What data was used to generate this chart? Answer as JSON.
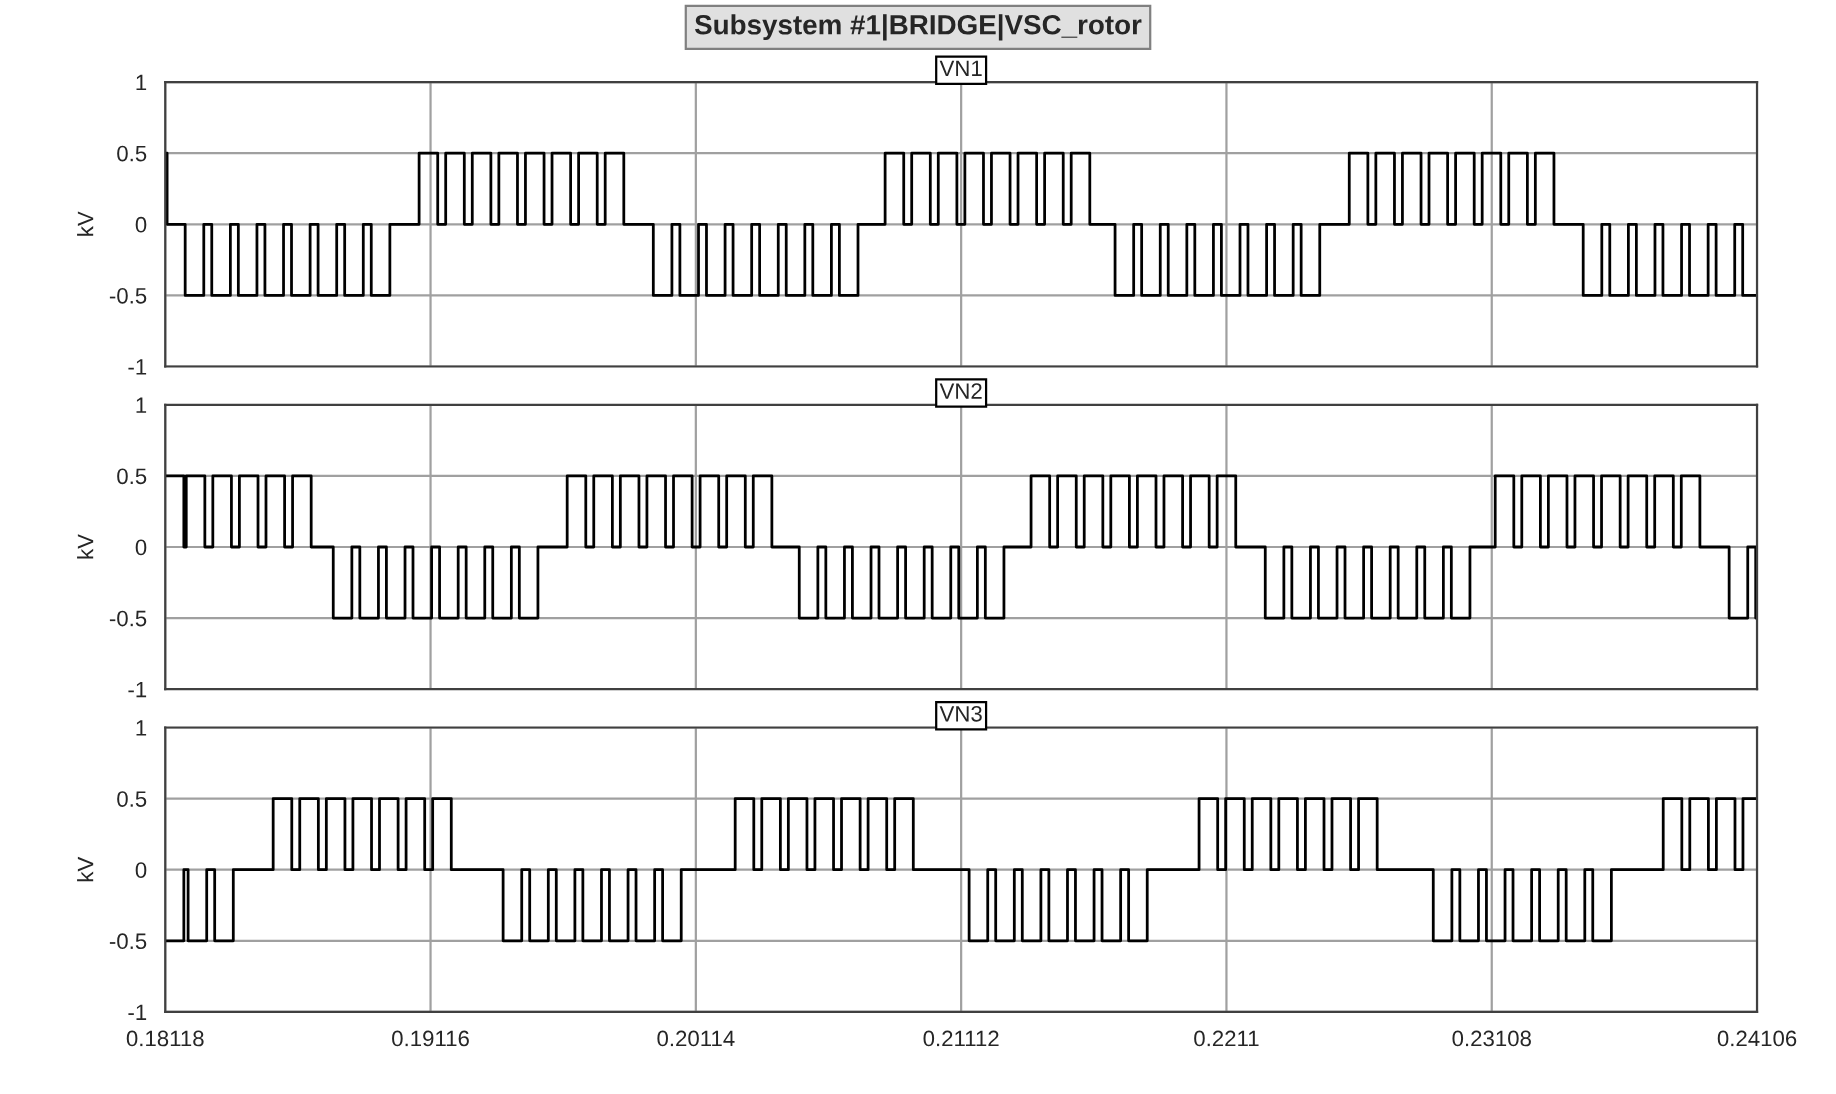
{
  "chart_data": [
    {
      "type": "step",
      "title": "VN1",
      "annotations": [
        "Subsystem #1|BRIDGE|VSC_rotor"
      ],
      "ylabel": "kV",
      "xlim": [
        0.18118,
        0.24106
      ],
      "xticks": [
        0.18118,
        0.19116,
        0.20114,
        0.21112,
        0.2211,
        0.23108,
        0.24106
      ],
      "ylim": [
        -1,
        1
      ],
      "yticks": [
        -1,
        -0.5,
        0,
        0.5,
        1
      ],
      "grid": true,
      "tick_labels": "y",
      "line_style": "solid",
      "x": [
        0.18118,
        0.18125,
        0.18193,
        0.18263,
        0.18293,
        0.18363,
        0.18393,
        0.18463,
        0.18493,
        0.18563,
        0.18593,
        0.18663,
        0.18693,
        0.18763,
        0.18793,
        0.18863,
        0.18893,
        0.18963,
        0.19073,
        0.19143,
        0.19173,
        0.19243,
        0.19273,
        0.19343,
        0.19373,
        0.19443,
        0.19473,
        0.19543,
        0.19573,
        0.19643,
        0.19673,
        0.19743,
        0.19773,
        0.19843,
        0.19954,
        0.20024,
        0.20054,
        0.20124,
        0.20154,
        0.20224,
        0.20254,
        0.20324,
        0.20354,
        0.20424,
        0.20454,
        0.20524,
        0.20554,
        0.20624,
        0.20654,
        0.20724,
        0.20826,
        0.20896,
        0.20926,
        0.20996,
        0.21026,
        0.21096,
        0.21126,
        0.21196,
        0.21226,
        0.21296,
        0.21326,
        0.21396,
        0.21426,
        0.21496,
        0.21526,
        0.21596,
        0.21691,
        0.21761,
        0.21791,
        0.21861,
        0.21891,
        0.21961,
        0.21991,
        0.22061,
        0.22091,
        0.22161,
        0.22191,
        0.22261,
        0.22291,
        0.22361,
        0.22391,
        0.22461,
        0.22572,
        0.22642,
        0.22672,
        0.22742,
        0.22772,
        0.22842,
        0.22872,
        0.22942,
        0.22972,
        0.23042,
        0.23072,
        0.23142,
        0.23172,
        0.23242,
        0.23272,
        0.23342,
        0.23452,
        0.23522,
        0.23552,
        0.23622,
        0.23652,
        0.23722,
        0.23752,
        0.23822,
        0.23852,
        0.23922,
        0.23952,
        0.24022,
        0.24052,
        0.24106
      ],
      "series": [
        {
          "color": "#000000",
          "values": [
            0.5,
            0,
            -0.5,
            0,
            -0.5,
            0,
            -0.5,
            0,
            -0.5,
            0,
            -0.5,
            0,
            -0.5,
            0,
            -0.5,
            0,
            -0.5,
            0,
            0.5,
            0,
            0.5,
            0,
            0.5,
            0,
            0.5,
            0,
            0.5,
            0,
            0.5,
            0,
            0.5,
            0,
            0.5,
            0,
            -0.5,
            0,
            -0.5,
            0,
            -0.5,
            0,
            -0.5,
            0,
            -0.5,
            0,
            -0.5,
            0,
            -0.5,
            0,
            -0.5,
            0,
            0.5,
            0,
            0.5,
            0,
            0.5,
            0,
            0.5,
            0,
            0.5,
            0,
            0.5,
            0,
            0.5,
            0,
            0.5,
            0,
            -0.5,
            0,
            -0.5,
            0,
            -0.5,
            0,
            -0.5,
            0,
            -0.5,
            0,
            -0.5,
            0,
            -0.5,
            0,
            -0.5,
            0,
            0.5,
            0,
            0.5,
            0,
            0.5,
            0,
            0.5,
            0,
            0.5,
            0,
            0.5,
            0,
            0.5,
            0,
            0.5,
            0,
            -0.5,
            0,
            -0.5,
            0,
            -0.5,
            0,
            -0.5,
            0,
            -0.5,
            0,
            -0.5,
            0,
            -0.5,
            -0.5
          ]
        }
      ]
    },
    {
      "type": "step",
      "title": "VN2",
      "ylabel": "kV",
      "xlim": [
        0.18118,
        0.24106
      ],
      "xticks": [
        0.18118,
        0.19116,
        0.20114,
        0.21112,
        0.2211,
        0.23108,
        0.24106
      ],
      "ylim": [
        -1,
        1
      ],
      "yticks": [
        -1,
        -0.5,
        0,
        0.5,
        1
      ],
      "grid": true,
      "tick_labels": "y",
      "line_style": "solid",
      "x": [
        0.18118,
        0.18188,
        0.18197,
        0.18267,
        0.18297,
        0.18367,
        0.18397,
        0.18467,
        0.18497,
        0.18567,
        0.18597,
        0.18667,
        0.1875,
        0.1882,
        0.1885,
        0.1892,
        0.1895,
        0.1902,
        0.1905,
        0.1912,
        0.1915,
        0.1922,
        0.1925,
        0.1932,
        0.1935,
        0.1942,
        0.1945,
        0.1952,
        0.1963,
        0.197,
        0.1973,
        0.198,
        0.1983,
        0.199,
        0.1993,
        0.2,
        0.2003,
        0.201,
        0.2013,
        0.202,
        0.2023,
        0.203,
        0.2033,
        0.204,
        0.20503,
        0.20573,
        0.20603,
        0.20673,
        0.20703,
        0.20773,
        0.20803,
        0.20873,
        0.20903,
        0.20973,
        0.21003,
        0.21073,
        0.21103,
        0.21173,
        0.21203,
        0.21273,
        0.21375,
        0.21445,
        0.21475,
        0.21545,
        0.21575,
        0.21645,
        0.21675,
        0.21745,
        0.21775,
        0.21845,
        0.21875,
        0.21945,
        0.21975,
        0.22045,
        0.22075,
        0.22145,
        0.22256,
        0.22326,
        0.22356,
        0.22426,
        0.22456,
        0.22526,
        0.22556,
        0.22626,
        0.22656,
        0.22726,
        0.22756,
        0.22826,
        0.22856,
        0.22926,
        0.22956,
        0.23026,
        0.23121,
        0.23191,
        0.23221,
        0.23291,
        0.23321,
        0.23391,
        0.23421,
        0.23491,
        0.23521,
        0.23591,
        0.23621,
        0.23691,
        0.23721,
        0.23791,
        0.23821,
        0.23891,
        0.24001,
        0.24071,
        0.24101,
        0.24106
      ],
      "series": [
        {
          "color": "#000000",
          "values": [
            0.5,
            0,
            0.5,
            0,
            0.5,
            0,
            0.5,
            0,
            0.5,
            0,
            0.5,
            0,
            -0.5,
            0,
            -0.5,
            0,
            -0.5,
            0,
            -0.5,
            0,
            -0.5,
            0,
            -0.5,
            0,
            -0.5,
            0,
            -0.5,
            0,
            0.5,
            0,
            0.5,
            0,
            0.5,
            0,
            0.5,
            0,
            0.5,
            0,
            0.5,
            0,
            0.5,
            0,
            0.5,
            0,
            -0.5,
            0,
            -0.5,
            0,
            -0.5,
            0,
            -0.5,
            0,
            -0.5,
            0,
            -0.5,
            0,
            -0.5,
            0,
            -0.5,
            0,
            0.5,
            0,
            0.5,
            0,
            0.5,
            0,
            0.5,
            0,
            0.5,
            0,
            0.5,
            0,
            0.5,
            0,
            0.5,
            0,
            -0.5,
            0,
            -0.5,
            0,
            -0.5,
            0,
            -0.5,
            0,
            -0.5,
            0,
            -0.5,
            0,
            -0.5,
            0,
            -0.5,
            0,
            0.5,
            0,
            0.5,
            0,
            0.5,
            0,
            0.5,
            0,
            0.5,
            0,
            0.5,
            0,
            0.5,
            0,
            0.5,
            0,
            -0.5,
            0,
            -0.5,
            -0.5
          ]
        }
      ]
    },
    {
      "type": "step",
      "title": "VN3",
      "ylabel": "kV",
      "xlim": [
        0.18118,
        0.24106
      ],
      "xticks": [
        0.18118,
        0.19116,
        0.20114,
        0.21112,
        0.2211,
        0.23108,
        0.24106
      ],
      "ylim": [
        -1,
        1
      ],
      "yticks": [
        -1,
        -0.5,
        0,
        0.5,
        1
      ],
      "grid": true,
      "line_style": "solid",
      "x": [
        0.18118,
        0.18188,
        0.18204,
        0.18274,
        0.18304,
        0.18374,
        0.18524,
        0.18594,
        0.18624,
        0.18694,
        0.18724,
        0.18794,
        0.18824,
        0.18894,
        0.18924,
        0.18994,
        0.19024,
        0.19094,
        0.19124,
        0.19194,
        0.19389,
        0.19459,
        0.19489,
        0.19559,
        0.19589,
        0.19659,
        0.19689,
        0.19759,
        0.19789,
        0.19859,
        0.19889,
        0.19959,
        0.19989,
        0.20059,
        0.20262,
        0.20332,
        0.20362,
        0.20432,
        0.20462,
        0.20532,
        0.20562,
        0.20632,
        0.20662,
        0.20732,
        0.20762,
        0.20832,
        0.20862,
        0.20932,
        0.21142,
        0.21212,
        0.21242,
        0.21312,
        0.21342,
        0.21412,
        0.21442,
        0.21512,
        0.21542,
        0.21612,
        0.21642,
        0.21712,
        0.21742,
        0.21812,
        0.22007,
        0.22077,
        0.22107,
        0.22177,
        0.22207,
        0.22277,
        0.22307,
        0.22377,
        0.22407,
        0.22477,
        0.22507,
        0.22577,
        0.22607,
        0.22677,
        0.22888,
        0.22958,
        0.22988,
        0.23058,
        0.23088,
        0.23158,
        0.23188,
        0.23258,
        0.23288,
        0.23358,
        0.23388,
        0.23458,
        0.23488,
        0.23558,
        0.23753,
        0.23823,
        0.23853,
        0.23923,
        0.23953,
        0.24023,
        0.24053,
        0.24106
      ],
      "series": [
        {
          "color": "#000000",
          "values": [
            -0.5,
            0,
            -0.5,
            0,
            -0.5,
            0,
            0.5,
            0,
            0.5,
            0,
            0.5,
            0,
            0.5,
            0,
            0.5,
            0,
            0.5,
            0,
            0.5,
            0,
            -0.5,
            0,
            -0.5,
            0,
            -0.5,
            0,
            -0.5,
            0,
            -0.5,
            0,
            -0.5,
            0,
            -0.5,
            0,
            0.5,
            0,
            0.5,
            0,
            0.5,
            0,
            0.5,
            0,
            0.5,
            0,
            0.5,
            0,
            0.5,
            0,
            -0.5,
            0,
            -0.5,
            0,
            -0.5,
            0,
            -0.5,
            0,
            -0.5,
            0,
            -0.5,
            0,
            -0.5,
            0,
            0.5,
            0,
            0.5,
            0,
            0.5,
            0,
            0.5,
            0,
            0.5,
            0,
            0.5,
            0,
            0.5,
            0,
            -0.5,
            0,
            -0.5,
            0,
            -0.5,
            0,
            -0.5,
            0,
            -0.5,
            0,
            -0.5,
            0,
            -0.5,
            0,
            0.5,
            0,
            0.5,
            0,
            0.5,
            0,
            0.5,
            0.5
          ]
        }
      ]
    }
  ]
}
